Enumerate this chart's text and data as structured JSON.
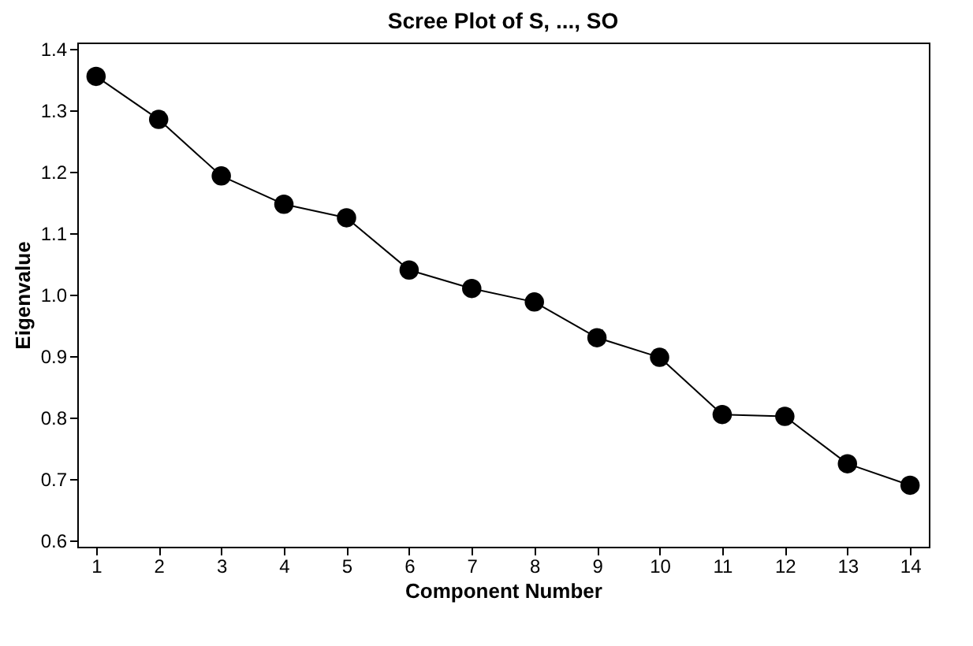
{
  "chart_data": {
    "type": "line",
    "title": "Scree Plot of S, ..., SO",
    "xlabel": "Component Number",
    "ylabel": "Eigenvalue",
    "x": [
      1,
      2,
      3,
      4,
      5,
      6,
      7,
      8,
      9,
      10,
      11,
      12,
      13,
      14
    ],
    "series": [
      {
        "color": "#000000",
        "values": [
          1.355,
          1.285,
          1.193,
          1.147,
          1.125,
          1.04,
          1.01,
          0.988,
          0.93,
          0.898,
          0.805,
          0.802,
          0.725,
          0.69
        ]
      }
    ],
    "xlim": [
      0.7,
      14.3
    ],
    "xticks": [
      1,
      2,
      3,
      4,
      5,
      6,
      7,
      8,
      9,
      10,
      11,
      12,
      13,
      14
    ],
    "ylim": [
      0.59,
      1.41
    ],
    "yticks": [
      0.6,
      0.7,
      0.8,
      0.9,
      {
        "value": 1,
        "label": "1.0"
      },
      1.1,
      1.2,
      1.3,
      1.4
    ],
    "marker": "circle",
    "line_style": "solid",
    "grid": false
  }
}
